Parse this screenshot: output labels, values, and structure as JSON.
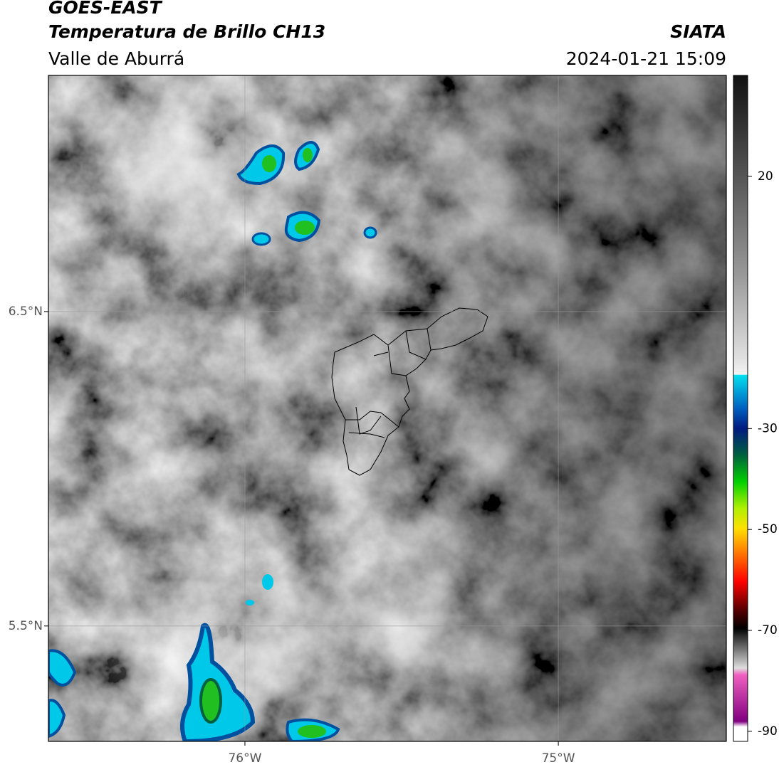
{
  "header": {
    "satellite": "GOES-EAST",
    "product": "Temperatura de Brillo CH13",
    "region": "Valle de Aburrá",
    "organization": "SIATA",
    "timestamp": "2024-01-21 15:09"
  },
  "map": {
    "xlim": [
      -76.627,
      -74.464
    ],
    "ylim": [
      5.133,
      7.251
    ],
    "xticks": [
      {
        "value": -76,
        "label": "76°W"
      },
      {
        "value": -75,
        "label": "75°W"
      }
    ],
    "yticks": [
      {
        "value": 6.5,
        "label": "6.5°N"
      },
      {
        "value": 5.5,
        "label": "5.5°N"
      }
    ]
  },
  "colorbar": {
    "lim": [
      -92,
      40
    ],
    "ticks": [
      20,
      -30,
      -50,
      -70,
      -90
    ]
  }
}
